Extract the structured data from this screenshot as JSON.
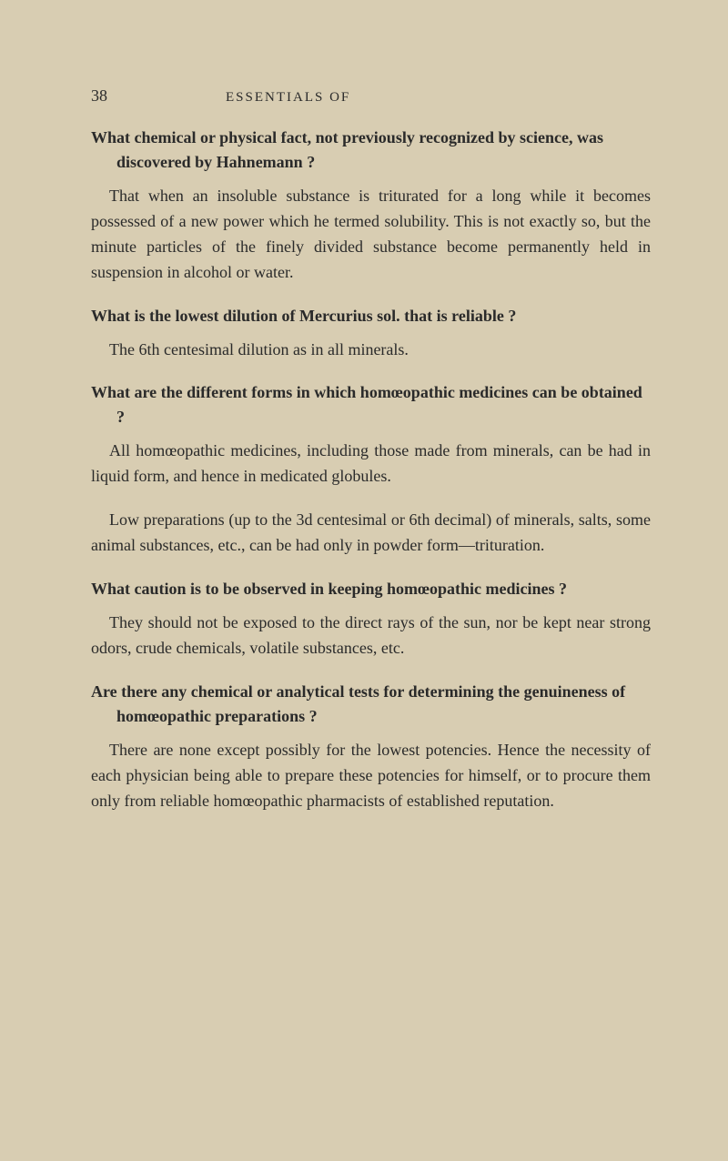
{
  "page": {
    "number": "38",
    "running_head": "ESSENTIALS OF",
    "background_color": "#d8cdb2",
    "text_color": "#2a2a2a",
    "body_fontsize": 18,
    "header_fontsize": 15
  },
  "qa": [
    {
      "question": "What chemical or physical fact, not previously recognized by science, was discovered by Hahnemann ?",
      "answers": [
        "That when an insoluble substance is triturated for a long while it becomes possessed of a new power which he termed solubility. This is not exactly so, but the minute particles of the finely divided substance become permanently held in suspension in alcohol or water."
      ]
    },
    {
      "question": "What is the lowest dilution of Mercurius sol. that is reliable ?",
      "answers": [
        "The 6th centesimal dilution as in all minerals."
      ]
    },
    {
      "question": "What are the different forms in which homœopathic medicines can be obtained ?",
      "answers": [
        "All homœopathic medicines, including those made from minerals, can be had in liquid form, and hence in medicated globules.",
        "Low preparations (up to the 3d centesimal or 6th decimal) of minerals, salts, some animal substances, etc., can be had only in powder form—trituration."
      ]
    },
    {
      "question": "What caution is to be observed in keeping homœopathic medicines ?",
      "answers": [
        "They should not be exposed to the direct rays of the sun, nor be kept near strong odors, crude chemicals, volatile substances, etc."
      ]
    },
    {
      "question": "Are there any chemical or analytical tests for determining the genuineness of homœopathic preparations ?",
      "answers": [
        "There are none except possibly for the lowest potencies. Hence the necessity of each physician being able to prepare these potencies for himself, or to procure them only from reliable homœopathic pharmacists of established reputation."
      ]
    }
  ]
}
